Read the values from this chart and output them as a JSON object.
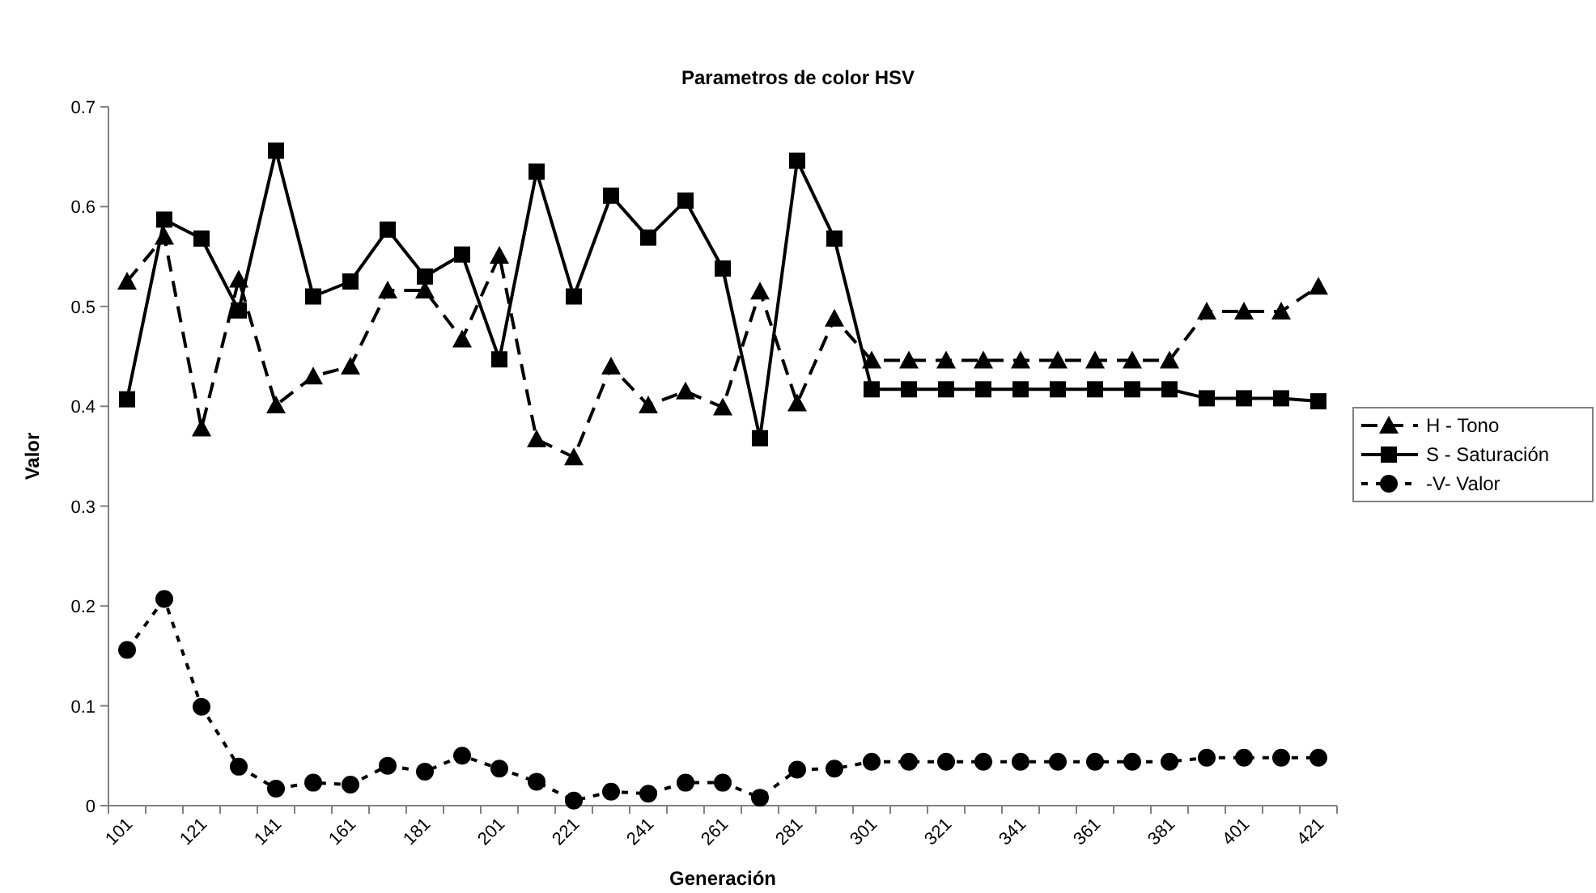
{
  "chart_data": {
    "type": "line",
    "title": "Parametros de color HSV",
    "xlabel": "Generación",
    "ylabel": "Valor",
    "categories": [
      "101",
      null,
      "121",
      null,
      "141",
      null,
      "161",
      null,
      "181",
      null,
      "201",
      null,
      "221",
      null,
      "241",
      null,
      "261",
      null,
      "281",
      null,
      "301",
      null,
      "321",
      null,
      "341",
      null,
      "361",
      null,
      "381",
      null,
      "401",
      null,
      "421"
    ],
    "series": [
      {
        "name": "H - Tono",
        "color": "#000000",
        "marker": "triangle",
        "line_style": "dashed",
        "values": [
          0.525,
          0.57,
          0.378,
          0.527,
          0.401,
          0.43,
          0.44,
          0.516,
          0.516,
          0.467,
          0.551,
          0.367,
          0.349,
          0.44,
          0.401,
          0.415,
          0.399,
          0.515,
          0.403,
          0.488,
          0.446,
          0.446,
          0.446,
          0.446,
          0.446,
          0.446,
          0.446,
          0.446,
          0.446,
          0.495,
          0.495,
          0.495,
          0.52
        ]
      },
      {
        "name": "S - Saturación",
        "color": "#000000",
        "marker": "square",
        "line_style": "solid",
        "values": [
          0.407,
          0.587,
          0.568,
          0.496,
          0.656,
          0.51,
          0.525,
          0.577,
          0.53,
          0.552,
          0.447,
          0.635,
          0.51,
          0.611,
          0.569,
          0.606,
          0.538,
          0.368,
          0.646,
          0.568,
          0.417,
          0.417,
          0.417,
          0.417,
          0.417,
          0.417,
          0.417,
          0.417,
          0.417,
          0.408,
          0.408,
          0.408,
          0.405
        ]
      },
      {
        "name": "-V- Valor",
        "color": "#000000",
        "marker": "circle",
        "line_style": "dotted",
        "values": [
          0.156,
          0.207,
          0.099,
          0.039,
          0.017,
          0.023,
          0.021,
          0.04,
          0.034,
          0.05,
          0.037,
          0.024,
          0.005,
          0.014,
          0.012,
          0.023,
          0.023,
          0.008,
          0.036,
          0.037,
          0.044,
          0.044,
          0.044,
          0.044,
          0.044,
          0.044,
          0.044,
          0.044,
          0.044,
          0.048,
          0.048,
          0.048,
          0.048
        ]
      }
    ],
    "ylim": [
      0,
      0.7
    ],
    "yticks": [
      0,
      0.1,
      0.2,
      0.3,
      0.4,
      0.5,
      0.6,
      0.7
    ],
    "grid": false,
    "legend": "right"
  }
}
